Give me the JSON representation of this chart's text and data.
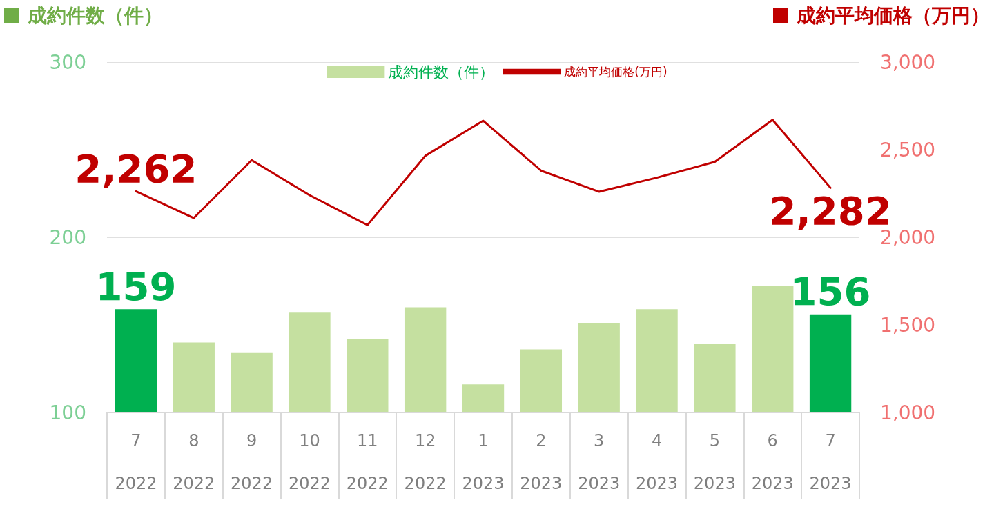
{
  "chart_data": {
    "type": "bar",
    "ylabel": "成約件数（件）",
    "y2label": "成約平均価格（万円）",
    "categories": [
      "7\n2022",
      "8\n2022",
      "9\n2022",
      "10\n2022",
      "11\n2022",
      "12\n2022",
      "1\n2023",
      "2\n2023",
      "3\n2023",
      "4\n2023",
      "5\n2023",
      "6\n2023",
      "7\n2023"
    ],
    "series": [
      {
        "name": "成約件数（件）",
        "color": "#c5e0a0",
        "colors": [
          "#00b050",
          "#c5e0a0",
          "#c5e0a0",
          "#c5e0a0",
          "#c5e0a0",
          "#c5e0a0",
          "#c5e0a0",
          "#c5e0a0",
          "#c5e0a0",
          "#c5e0a0",
          "#c5e0a0",
          "#c5e0a0",
          "#00b050"
        ],
        "values": [
          159,
          140,
          134,
          157,
          142,
          160,
          116,
          136,
          151,
          159,
          139,
          172,
          156
        ],
        "value_labels": [
          "159",
          null,
          null,
          null,
          null,
          null,
          null,
          null,
          null,
          null,
          null,
          null,
          "156"
        ]
      },
      {
        "name": "成約平均価格(万円)",
        "type": "line",
        "axis": "y2",
        "color": "#c00000",
        "values": [
          2262,
          2110,
          2440,
          2240,
          2070,
          2465,
          2665,
          2380,
          2260,
          2340,
          2430,
          2670,
          2282
        ],
        "value_labels": [
          "2,262",
          null,
          null,
          null,
          null,
          null,
          null,
          null,
          null,
          null,
          null,
          null,
          "2,282"
        ]
      }
    ],
    "ylim": [
      100,
      300
    ],
    "yticks": [
      100,
      200,
      300
    ],
    "y2lim": [
      1000,
      3000
    ],
    "y2ticks": [
      {
        "value": 1000,
        "label": "1,000"
      },
      {
        "value": 1500,
        "label": "1,500"
      },
      {
        "value": 2000,
        "label": "2,000"
      },
      {
        "value": 2500,
        "label": "2,500"
      },
      {
        "value": 3000,
        "label": "3,000"
      }
    ],
    "grid": "y",
    "legend": "top",
    "marker": "none",
    "line_style": "solid"
  }
}
